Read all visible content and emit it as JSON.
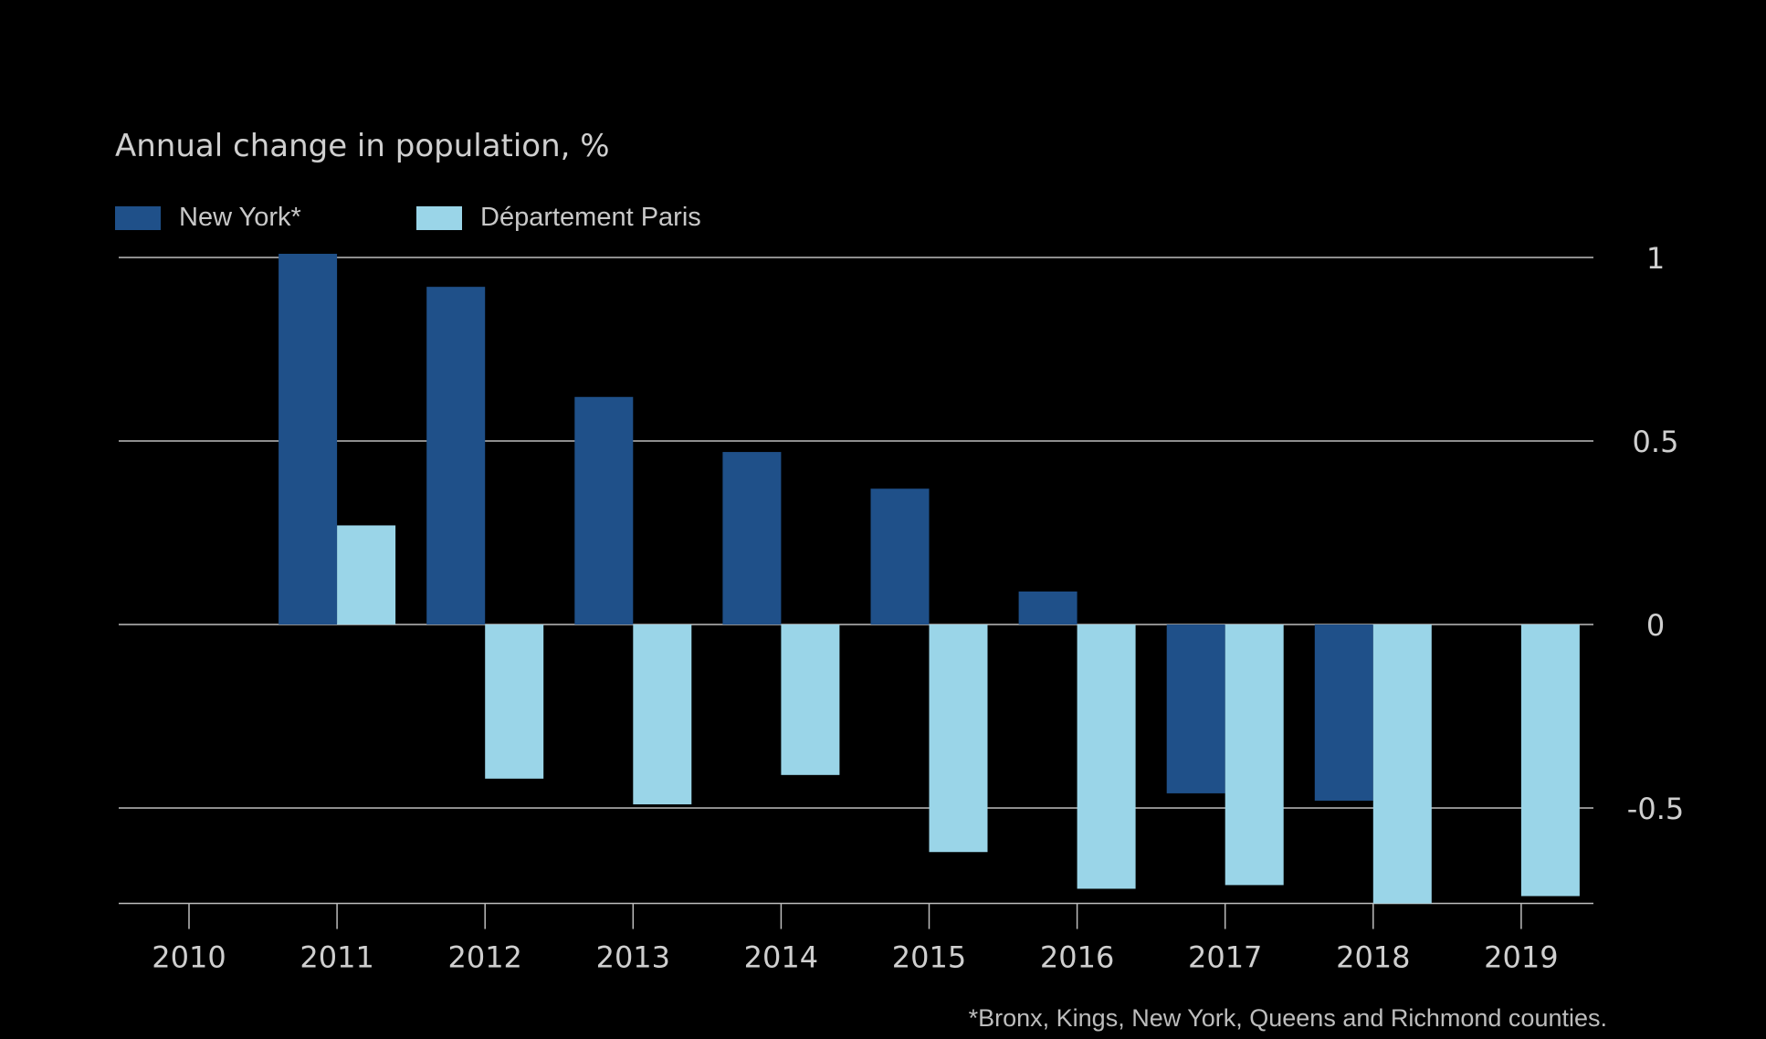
{
  "colors": {
    "background": "#000000",
    "new_york": "#1f5089",
    "paris": "#9ad5e8",
    "grid": "#bdbdbd",
    "text": "#cfcfcf"
  },
  "chart_data": {
    "type": "bar",
    "subtitle": "Annual change in population, %",
    "categories": [
      "2010",
      "2011",
      "2012",
      "2013",
      "2014",
      "2015",
      "2016",
      "2017",
      "2018",
      "2019"
    ],
    "series": [
      {
        "name": "New York*",
        "values": [
          null,
          1.01,
          0.92,
          0.62,
          0.47,
          0.37,
          0.09,
          -0.46,
          -0.48,
          null
        ]
      },
      {
        "name": "Département Paris",
        "values": [
          null,
          0.27,
          -0.42,
          -0.49,
          -0.41,
          -0.62,
          -0.72,
          -0.71,
          -0.76,
          -0.74
        ]
      }
    ],
    "ylim": [
      -0.76,
      1.0
    ],
    "yticks": [
      1,
      0.5,
      0,
      -0.5
    ],
    "ytick_labels": [
      "1",
      "0.5",
      "0",
      "-0.5"
    ],
    "y_axis_side": "right",
    "grid": true,
    "legend_position": "top-left",
    "footnote": "*Bronx, Kings, New York, Queens and Richmond counties."
  }
}
